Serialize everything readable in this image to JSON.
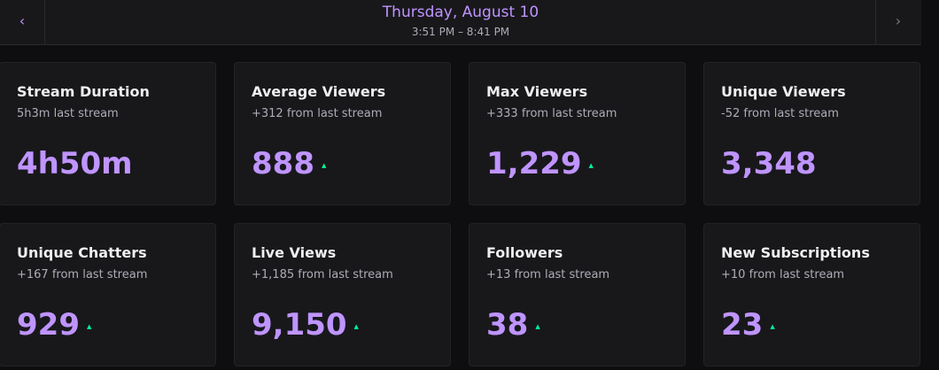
{
  "header": {
    "title": "Thursday, August 10",
    "subtitle": "3:51 PM – 8:41 PM"
  },
  "cards": [
    {
      "title": "Stream Duration",
      "subtitle": "5h3m last stream",
      "value": "4h50m"
    },
    {
      "title": "Average Viewers",
      "subtitle": "+312 from last stream",
      "value": "888",
      "trend": "up"
    },
    {
      "title": "Max Viewers",
      "subtitle": "+333 from last stream",
      "value": "1,229",
      "trend": "up"
    },
    {
      "title": "Unique Viewers",
      "subtitle": "-52 from last stream",
      "value": "3,348"
    },
    {
      "title": "Unique Chatters",
      "subtitle": "+167 from last stream",
      "value": "929",
      "trend": "up"
    },
    {
      "title": "Live Views",
      "subtitle": "+1,185 from last stream",
      "value": "9,150",
      "trend": "up"
    },
    {
      "title": "Followers",
      "subtitle": "+13 from last stream",
      "value": "38",
      "trend": "up"
    },
    {
      "title": "New Subscriptions",
      "subtitle": "+10 from last stream",
      "value": "23",
      "trend": "up"
    }
  ]
}
